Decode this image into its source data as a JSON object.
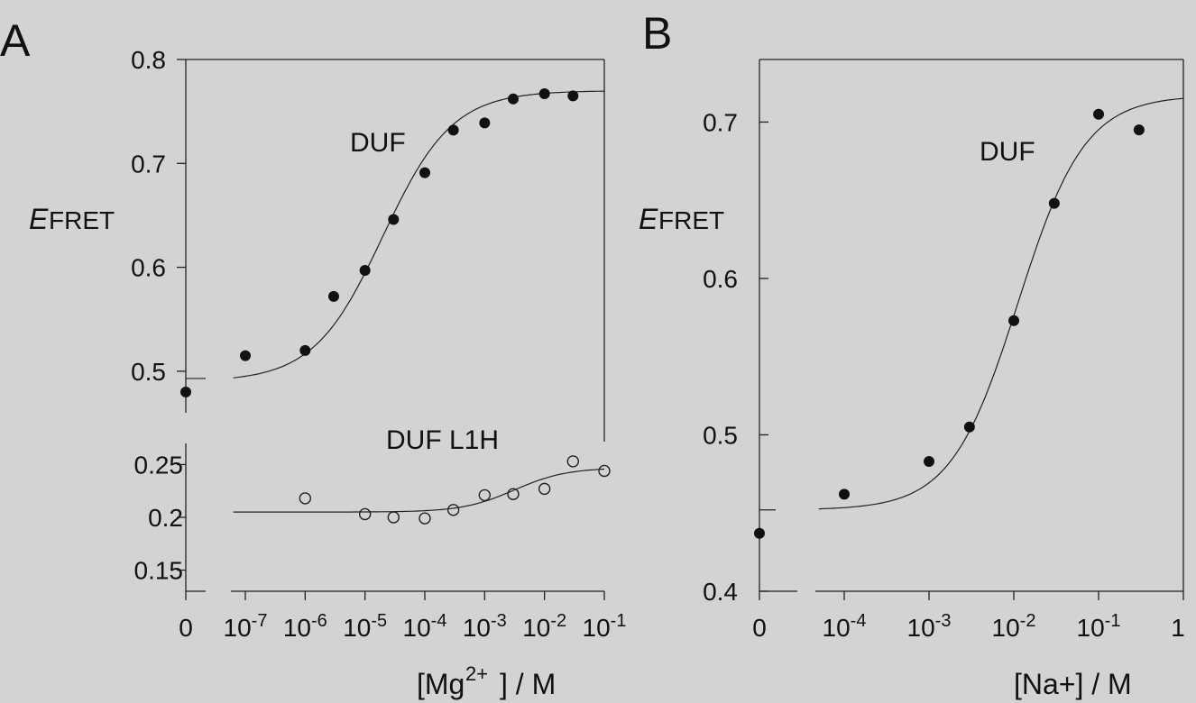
{
  "chart_data": [
    {
      "panel_label": "A",
      "type": "scatter",
      "x_scale": "log10",
      "xlabel_main": "[Mg",
      "xlabel_sup": "2+",
      "xlabel_tail": "] / M",
      "ylabel_main": "E",
      "ylabel_sub": "FRET",
      "x_ticks": [
        {
          "value": 0,
          "base": "0",
          "exp": ""
        },
        {
          "value": 1e-07,
          "base": "10",
          "exp": "-7"
        },
        {
          "value": 1e-06,
          "base": "10",
          "exp": "-6"
        },
        {
          "value": 1e-05,
          "base": "10",
          "exp": "-5"
        },
        {
          "value": 0.0001,
          "base": "10",
          "exp": "-4"
        },
        {
          "value": 0.001,
          "base": "10",
          "exp": "-3"
        },
        {
          "value": 0.01,
          "base": "10",
          "exp": "-2"
        },
        {
          "value": 0.1,
          "base": "10",
          "exp": "-1"
        }
      ],
      "subplots": [
        {
          "name": "top",
          "ylim": [
            0.46,
            0.8
          ],
          "y_ticks": [
            "0.5",
            "0.6",
            "0.7",
            "0.8"
          ],
          "y_tick_values": [
            0.5,
            0.6,
            0.7,
            0.8
          ],
          "series": [
            {
              "name": "DUF",
              "marker": "filled",
              "zero_point": 0.48,
              "x": [
                1e-07,
                1e-06,
                3e-06,
                1e-05,
                3e-05,
                0.0001,
                0.0003,
                0.001,
                0.003,
                0.01,
                0.03
              ],
              "y": [
                0.515,
                0.52,
                0.572,
                0.597,
                0.646,
                0.691,
                0.732,
                0.739,
                0.762,
                0.767,
                0.765
              ],
              "fit": {
                "low": 0.49,
                "high": 0.77,
                "log_midpoint": -4.7,
                "slope": 0.75,
                "zero_level": 0.493
              }
            }
          ]
        },
        {
          "name": "bottom",
          "ylim": [
            0.13,
            0.27
          ],
          "y_ticks": [
            "0.15",
            "0.2",
            "0.25"
          ],
          "y_tick_values": [
            0.15,
            0.2,
            0.25
          ],
          "series": [
            {
              "name": "DUF L1H",
              "marker": "open",
              "x": [
                1e-06,
                1e-05,
                3e-05,
                0.0001,
                0.0003,
                0.001,
                0.003,
                0.01,
                0.03,
                0.1
              ],
              "y": [
                0.218,
                0.203,
                0.2,
                0.199,
                0.207,
                0.221,
                0.222,
                0.227,
                0.253,
                0.244
              ],
              "fit": {
                "low": 0.205,
                "high": 0.247,
                "log_midpoint": -2.5,
                "slope": 1.0,
                "zero_level": 0.205
              }
            }
          ]
        }
      ]
    },
    {
      "panel_label": "B",
      "type": "scatter",
      "x_scale": "log10",
      "xlabel_main": "[Na+] / M",
      "ylabel_main": "E",
      "ylabel_sub": "FRET",
      "ylim": [
        0.4,
        0.74
      ],
      "y_ticks": [
        "0.4",
        "0.5",
        "0.6",
        "0.7"
      ],
      "y_tick_values": [
        0.4,
        0.5,
        0.6,
        0.7
      ],
      "x_ticks": [
        {
          "value": 0,
          "base": "0",
          "exp": ""
        },
        {
          "value": 0.0001,
          "base": "10",
          "exp": "-4"
        },
        {
          "value": 0.001,
          "base": "10",
          "exp": "-3"
        },
        {
          "value": 0.01,
          "base": "10",
          "exp": "-2"
        },
        {
          "value": 0.1,
          "base": "10",
          "exp": "-1"
        },
        {
          "value": 1,
          "base": "1",
          "exp": ""
        }
      ],
      "series": [
        {
          "name": "DUF",
          "marker": "filled",
          "zero_point": 0.437,
          "x": [
            0.0001,
            0.001,
            0.003,
            0.01,
            0.03,
            0.1,
            0.3
          ],
          "y": [
            0.462,
            0.483,
            0.505,
            0.573,
            0.648,
            0.705,
            0.695
          ],
          "fit": {
            "low": 0.452,
            "high": 0.717,
            "log_midpoint": -1.95,
            "slope": 1.1,
            "zero_level": 0.452
          }
        }
      ]
    }
  ]
}
